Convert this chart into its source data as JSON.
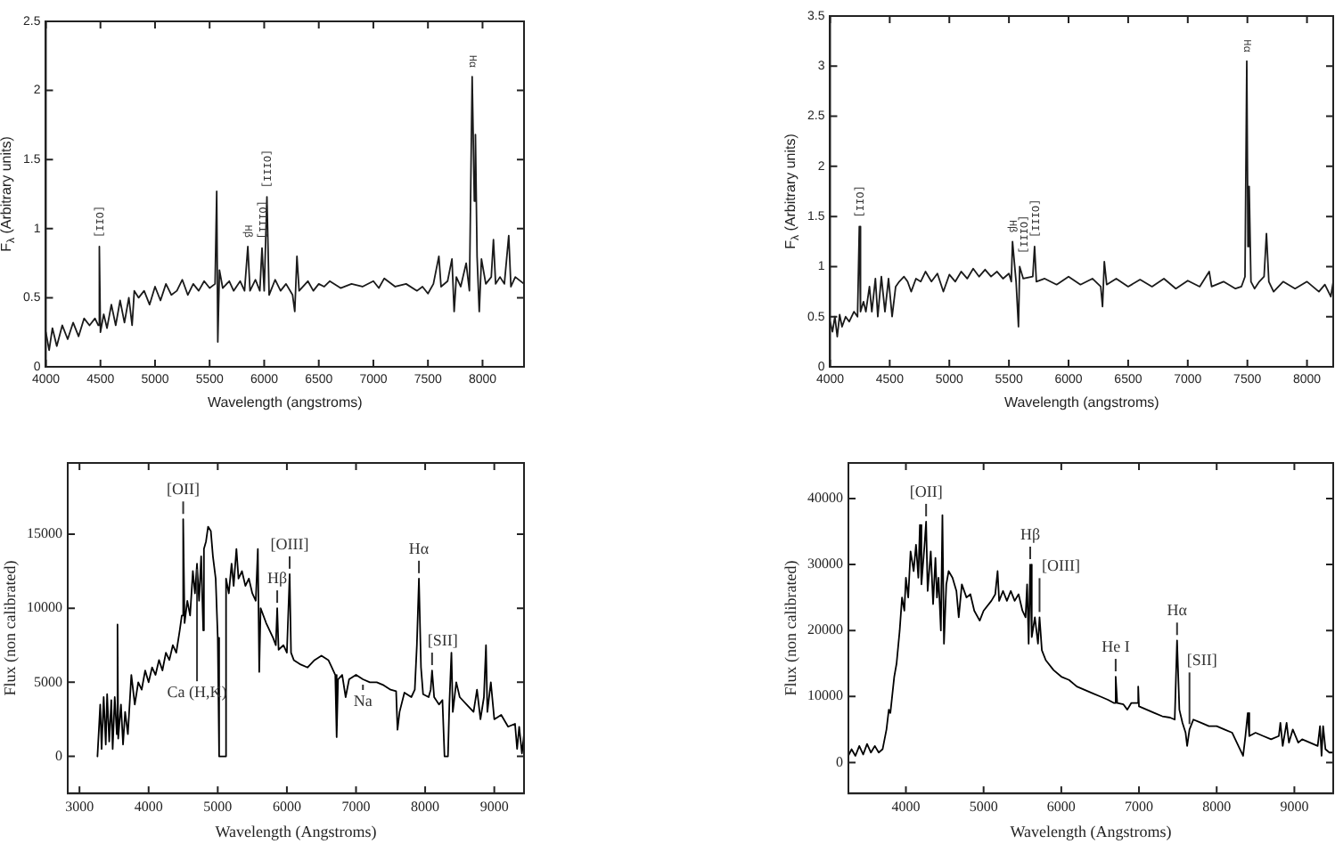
{
  "chart_data": [
    {
      "type": "line",
      "xlabel": "Wavelength (angstroms)",
      "ylabel": "F$_{λ}$ (Arbitrary units)",
      "xlim": [
        4000,
        8380
      ],
      "xticks": [
        4000,
        4500,
        5000,
        5500,
        6000,
        6500,
        7000,
        7500,
        8000
      ],
      "ylim": [
        0,
        2.5
      ],
      "yticks": [
        0,
        0.5,
        1,
        1.5,
        2,
        2.5
      ],
      "annotations": [
        {
          "text": "[OII]",
          "x": 4490,
          "y": 0.87
        },
        {
          "text": "Hβ",
          "x": 5850,
          "y": 0.87
        },
        {
          "text": "[OIII]",
          "x": 5980,
          "y": 0.86
        },
        {
          "text": "[OIII]",
          "x": 6025,
          "y": 1.23
        },
        {
          "text": "Hα",
          "x": 7905,
          "y": 2.1
        }
      ],
      "series": [
        {
          "color": "#1a1a1a",
          "x": [
            4000,
            4030,
            4060,
            4100,
            4150,
            4200,
            4250,
            4300,
            4350,
            4400,
            4450,
            4480,
            4490,
            4500,
            4530,
            4560,
            4600,
            4640,
            4680,
            4720,
            4760,
            4790,
            4810,
            4850,
            4900,
            4950,
            5000,
            5050,
            5100,
            5150,
            5200,
            5250,
            5300,
            5350,
            5400,
            5450,
            5500,
            5550,
            5565,
            5575,
            5590,
            5620,
            5680,
            5720,
            5780,
            5820,
            5850,
            5870,
            5920,
            5960,
            5980,
            6000,
            6025,
            6045,
            6100,
            6150,
            6200,
            6260,
            6280,
            6300,
            6320,
            6400,
            6450,
            6500,
            6550,
            6600,
            6700,
            6800,
            6900,
            7000,
            7050,
            7100,
            7200,
            7300,
            7400,
            7450,
            7500,
            7550,
            7600,
            7620,
            7680,
            7720,
            7740,
            7760,
            7800,
            7850,
            7880,
            7905,
            7925,
            7935,
            7950,
            7970,
            7990,
            8030,
            8080,
            8100,
            8120,
            8160,
            8200,
            8240,
            8260,
            8300,
            8380
          ],
          "values": [
            0.25,
            0.12,
            0.28,
            0.15,
            0.3,
            0.2,
            0.32,
            0.22,
            0.35,
            0.3,
            0.35,
            0.3,
            0.87,
            0.25,
            0.38,
            0.28,
            0.45,
            0.3,
            0.48,
            0.32,
            0.5,
            0.3,
            0.55,
            0.5,
            0.55,
            0.45,
            0.58,
            0.48,
            0.6,
            0.52,
            0.55,
            0.63,
            0.52,
            0.6,
            0.55,
            0.62,
            0.57,
            0.6,
            1.27,
            0.18,
            0.7,
            0.57,
            0.62,
            0.55,
            0.62,
            0.55,
            0.87,
            0.55,
            0.63,
            0.55,
            0.86,
            0.55,
            1.23,
            0.52,
            0.63,
            0.55,
            0.6,
            0.52,
            0.4,
            0.8,
            0.55,
            0.62,
            0.55,
            0.6,
            0.58,
            0.62,
            0.57,
            0.6,
            0.58,
            0.62,
            0.57,
            0.64,
            0.58,
            0.6,
            0.55,
            0.58,
            0.53,
            0.6,
            0.8,
            0.58,
            0.62,
            0.78,
            0.4,
            0.65,
            0.58,
            0.75,
            0.55,
            2.1,
            1.2,
            1.68,
            0.8,
            0.4,
            0.78,
            0.6,
            0.65,
            0.92,
            0.6,
            0.65,
            0.6,
            0.95,
            0.58,
            0.65,
            0.6
          ]
        }
      ]
    },
    {
      "type": "line",
      "xlabel": "Wavelength (angstroms)",
      "ylabel": "F$_{λ}$ (Arbitrary units)",
      "xlim": [
        4000,
        8220
      ],
      "xticks": [
        4000,
        4500,
        5000,
        5500,
        6000,
        6500,
        7000,
        7500,
        8000
      ],
      "ylim": [
        0,
        3.5
      ],
      "yticks": [
        0,
        0.5,
        1,
        1.5,
        2,
        2.5,
        3,
        3.5
      ],
      "annotations": [
        {
          "text": "[OII]",
          "x": 4245,
          "y": 1.4
        },
        {
          "text": "Hβ",
          "x": 5530,
          "y": 1.25
        },
        {
          "text": "[OIII]",
          "x": 5620,
          "y": 0.88
        },
        {
          "text": "[OIII]",
          "x": 5715,
          "y": 1.2
        },
        {
          "text": "Hα",
          "x": 7495,
          "y": 3.05
        }
      ],
      "series": [
        {
          "color": "#1a1a1a",
          "x": [
            4000,
            4020,
            4040,
            4060,
            4080,
            4100,
            4130,
            4160,
            4200,
            4230,
            4245,
            4255,
            4280,
            4300,
            4330,
            4350,
            4380,
            4400,
            4430,
            4460,
            4490,
            4520,
            4550,
            4580,
            4620,
            4650,
            4680,
            4720,
            4760,
            4800,
            4850,
            4900,
            4950,
            5000,
            5050,
            5100,
            5150,
            5200,
            5250,
            5300,
            5350,
            5400,
            5450,
            5500,
            5520,
            5530,
            5560,
            5580,
            5590,
            5620,
            5700,
            5715,
            5730,
            5800,
            5900,
            6000,
            6100,
            6200,
            6270,
            6285,
            6300,
            6320,
            6400,
            6500,
            6600,
            6700,
            6800,
            6900,
            7000,
            7100,
            7180,
            7200,
            7300,
            7400,
            7450,
            7480,
            7495,
            7505,
            7515,
            7530,
            7560,
            7600,
            7640,
            7660,
            7680,
            7720,
            7800,
            7900,
            8000,
            8100,
            8150,
            8200,
            8220
          ],
          "values": [
            0.45,
            0.35,
            0.5,
            0.3,
            0.52,
            0.4,
            0.5,
            0.45,
            0.55,
            0.5,
            1.4,
            0.55,
            0.65,
            0.55,
            0.8,
            0.55,
            0.88,
            0.5,
            0.9,
            0.55,
            0.88,
            0.5,
            0.8,
            0.85,
            0.9,
            0.85,
            0.75,
            0.88,
            0.85,
            0.95,
            0.85,
            0.93,
            0.75,
            0.92,
            0.85,
            0.95,
            0.88,
            0.98,
            0.9,
            0.97,
            0.9,
            0.95,
            0.88,
            0.93,
            0.85,
            1.25,
            0.85,
            0.4,
            1.0,
            0.88,
            0.9,
            1.2,
            0.85,
            0.88,
            0.82,
            0.9,
            0.82,
            0.88,
            0.8,
            0.6,
            1.05,
            0.82,
            0.88,
            0.8,
            0.87,
            0.8,
            0.88,
            0.78,
            0.86,
            0.8,
            0.95,
            0.8,
            0.85,
            0.78,
            0.8,
            0.9,
            3.05,
            1.2,
            1.8,
            0.85,
            0.78,
            0.85,
            0.9,
            1.33,
            0.85,
            0.75,
            0.85,
            0.78,
            0.85,
            0.75,
            0.82,
            0.7,
            0.85
          ]
        }
      ]
    },
    {
      "type": "line",
      "xlabel": "Wavelength (Angstroms)",
      "ylabel": "Flux (non calibrated)",
      "xlim": [
        2830,
        9430
      ],
      "xticks": [
        3000,
        4000,
        5000,
        6000,
        7000,
        8000,
        9000
      ],
      "ylim": [
        -2500,
        19800
      ],
      "yticks": [
        0,
        5000,
        10000,
        15000
      ],
      "annotations": [
        {
          "text": "[OII]",
          "x": 4500,
          "y": 16000
        },
        {
          "text": "Ca (H,K)",
          "x": 4700,
          "y": 13000
        },
        {
          "text": "Hβ",
          "x": 5860,
          "y": 10000
        },
        {
          "text": "[OIII]",
          "x": 6040,
          "y": 12300
        },
        {
          "text": "Hα",
          "x": 7910,
          "y": 12000
        },
        {
          "text": "[SII]",
          "x": 8100,
          "y": 5800
        },
        {
          "text": "Na",
          "x": 7100,
          "y": 5200
        }
      ],
      "series": [
        {
          "color": "#000000",
          "x": [
            3260,
            3300,
            3320,
            3350,
            3380,
            3400,
            3430,
            3460,
            3480,
            3510,
            3540,
            3550,
            3560,
            3600,
            3630,
            3660,
            3700,
            3750,
            3800,
            3850,
            3900,
            3950,
            4000,
            4050,
            4100,
            4150,
            4200,
            4250,
            4300,
            4350,
            4400,
            4450,
            4480,
            4500,
            4520,
            4560,
            4600,
            4640,
            4670,
            4700,
            4730,
            4760,
            4790,
            4800,
            4830,
            4860,
            4900,
            4930,
            4970,
            5000,
            5020,
            5100,
            5120,
            5160,
            5200,
            5230,
            5270,
            5300,
            5350,
            5400,
            5450,
            5500,
            5550,
            5580,
            5600,
            5620,
            5700,
            5800,
            5840,
            5860,
            5880,
            5950,
            6000,
            6040,
            6060,
            6100,
            6200,
            6300,
            6400,
            6500,
            6600,
            6650,
            6700,
            6720,
            6740,
            6800,
            6850,
            6900,
            7000,
            7100,
            7200,
            7300,
            7400,
            7500,
            7580,
            7600,
            7630,
            7700,
            7800,
            7850,
            7880,
            7910,
            7940,
            7970,
            8050,
            8080,
            8100,
            8130,
            8200,
            8250,
            8280,
            8330,
            8350,
            8380,
            8400,
            8450,
            8500,
            8600,
            8700,
            8750,
            8800,
            8850,
            8880,
            8900,
            8950,
            9000,
            9100,
            9200,
            9300,
            9330,
            9360,
            9400,
            9430
          ],
          "values": [
            0,
            3500,
            500,
            4000,
            800,
            4200,
            1000,
            3800,
            500,
            4000,
            1500,
            8900,
            1200,
            3500,
            800,
            3000,
            1500,
            5500,
            3500,
            5000,
            4500,
            5800,
            5000,
            6000,
            5500,
            6500,
            5800,
            7000,
            6500,
            7500,
            7000,
            8500,
            9500,
            16000,
            9000,
            10500,
            9500,
            12500,
            11000,
            13000,
            10500,
            13500,
            8500,
            14000,
            14500,
            15500,
            15200,
            13500,
            12000,
            8000,
            0,
            0,
            12000,
            11000,
            13000,
            11500,
            14000,
            12000,
            12500,
            11500,
            12000,
            11000,
            10500,
            14000,
            5700,
            10000,
            9000,
            8000,
            7500,
            10000,
            7200,
            7500,
            7000,
            12300,
            7000,
            6500,
            6200,
            6000,
            6500,
            6800,
            6500,
            6000,
            5500,
            1300,
            5200,
            5500,
            4000,
            5200,
            5500,
            5200,
            5000,
            5000,
            4800,
            4500,
            4400,
            1800,
            3000,
            4300,
            4000,
            4500,
            7500,
            12000,
            6000,
            4200,
            4000,
            4500,
            5800,
            4000,
            3500,
            3800,
            0,
            0,
            3500,
            7000,
            3000,
            5000,
            4000,
            3500,
            3000,
            4500,
            2500,
            4000,
            7500,
            3000,
            5000,
            2500,
            2800,
            2000,
            2200,
            500,
            2000,
            200,
            1500
          ]
        }
      ]
    },
    {
      "type": "line",
      "xlabel": "Wavelength (Angstroms)",
      "ylabel": "Flux (non calibrated)",
      "xlim": [
        3260,
        9500
      ],
      "xticks": [
        4000,
        5000,
        6000,
        7000,
        8000,
        9000
      ],
      "ylim": [
        -4700,
        45400
      ],
      "yticks": [
        0,
        10000,
        20000,
        30000,
        40000
      ],
      "annotations": [
        {
          "text": "[OII]",
          "x": 4260,
          "y": 36500
        },
        {
          "text": "Hβ",
          "x": 5600,
          "y": 30000
        },
        {
          "text": "[OIII]",
          "x": 5720,
          "y": 22000
        },
        {
          "text": "He I",
          "x": 6700,
          "y": 13000
        },
        {
          "text": "Hα",
          "x": 7490,
          "y": 18500
        },
        {
          "text": "[SII]",
          "x": 7650,
          "y": 5000
        }
      ],
      "series": [
        {
          "color": "#000000",
          "x": [
            3260,
            3300,
            3350,
            3400,
            3450,
            3500,
            3550,
            3600,
            3650,
            3700,
            3750,
            3780,
            3800,
            3850,
            3880,
            3920,
            3950,
            3980,
            4000,
            4030,
            4060,
            4100,
            4130,
            4160,
            4180,
            4200,
            4240,
            4260,
            4280,
            4320,
            4350,
            4380,
            4400,
            4420,
            4450,
            4470,
            4490,
            4520,
            4550,
            4600,
            4650,
            4680,
            4720,
            4780,
            4830,
            4880,
            4950,
            5000,
            5100,
            5150,
            5180,
            5200,
            5250,
            5300,
            5350,
            5400,
            5450,
            5500,
            5540,
            5560,
            5580,
            5600,
            5620,
            5660,
            5700,
            5720,
            5750,
            5800,
            5900,
            6000,
            6100,
            6200,
            6300,
            6400,
            6500,
            6600,
            6680,
            6700,
            6720,
            6800,
            6850,
            6900,
            6980,
            6990,
            7000,
            7100,
            7200,
            7300,
            7400,
            7460,
            7490,
            7520,
            7560,
            7600,
            7620,
            7650,
            7700,
            7800,
            7900,
            8000,
            8100,
            8200,
            8300,
            8340,
            8370,
            8400,
            8420,
            8500,
            8600,
            8700,
            8800,
            8820,
            8850,
            8900,
            8930,
            8980,
            9050,
            9100,
            9200,
            9300,
            9330,
            9350,
            9370,
            9400,
            9450,
            9500
          ],
          "values": [
            1000,
            2000,
            1000,
            2500,
            1200,
            2800,
            1500,
            2500,
            1500,
            2000,
            5000,
            8000,
            7500,
            13000,
            15000,
            20000,
            25000,
            23000,
            28000,
            25000,
            32000,
            29000,
            33000,
            28000,
            36000,
            27000,
            33000,
            36500,
            26000,
            32000,
            24000,
            31000,
            25000,
            28000,
            20000,
            37500,
            18000,
            27000,
            29000,
            28000,
            26000,
            22000,
            27000,
            25000,
            25500,
            23000,
            21500,
            23000,
            24500,
            25500,
            29000,
            24500,
            26000,
            24500,
            26000,
            24500,
            25500,
            23000,
            22000,
            27000,
            18000,
            30000,
            19000,
            22000,
            18000,
            22000,
            17000,
            15500,
            14000,
            13000,
            12500,
            11500,
            11000,
            10500,
            10000,
            9500,
            9000,
            13000,
            9000,
            8800,
            8000,
            9000,
            9000,
            11500,
            8500,
            8000,
            7500,
            7000,
            6800,
            6500,
            18500,
            8000,
            6000,
            4500,
            2500,
            5000,
            6500,
            6000,
            5500,
            5500,
            5000,
            4500,
            2000,
            1000,
            4000,
            7500,
            4000,
            4500,
            4000,
            3500,
            4000,
            6000,
            2500,
            6000,
            3000,
            5000,
            3000,
            3500,
            3000,
            2500,
            5500,
            1000,
            5500,
            2000,
            1500,
            1500
          ]
        }
      ]
    }
  ]
}
